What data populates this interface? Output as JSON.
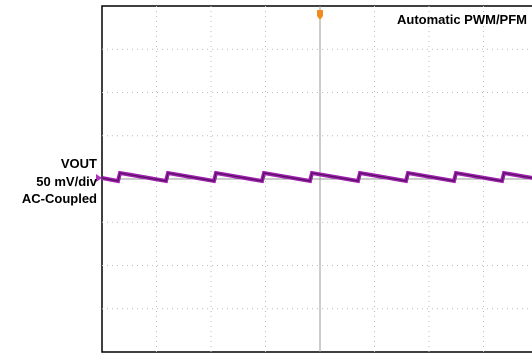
{
  "mode": "Automatic PWM/PFM",
  "channel": {
    "name": "VOUT",
    "scale": "50 mV/div",
    "coupling": "AC-Coupled"
  }
}
